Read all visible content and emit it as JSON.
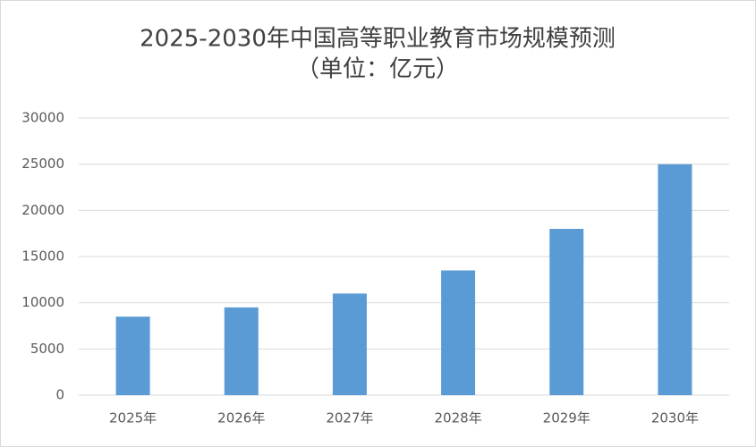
{
  "chart_data": {
    "type": "bar",
    "title": "2025-2030年中国高等职业教育市场规模预测",
    "subtitle": "（单位：亿元）",
    "categories": [
      "2025年",
      "2026年",
      "2027年",
      "2028年",
      "2029年",
      "2030年"
    ],
    "values": [
      8500,
      9500,
      11000,
      13500,
      18000,
      25000
    ],
    "color": "#5b9bd5",
    "ylim": [
      0,
      30000
    ],
    "yticks": [
      0,
      5000,
      10000,
      15000,
      20000,
      25000,
      30000
    ],
    "grid": true
  }
}
